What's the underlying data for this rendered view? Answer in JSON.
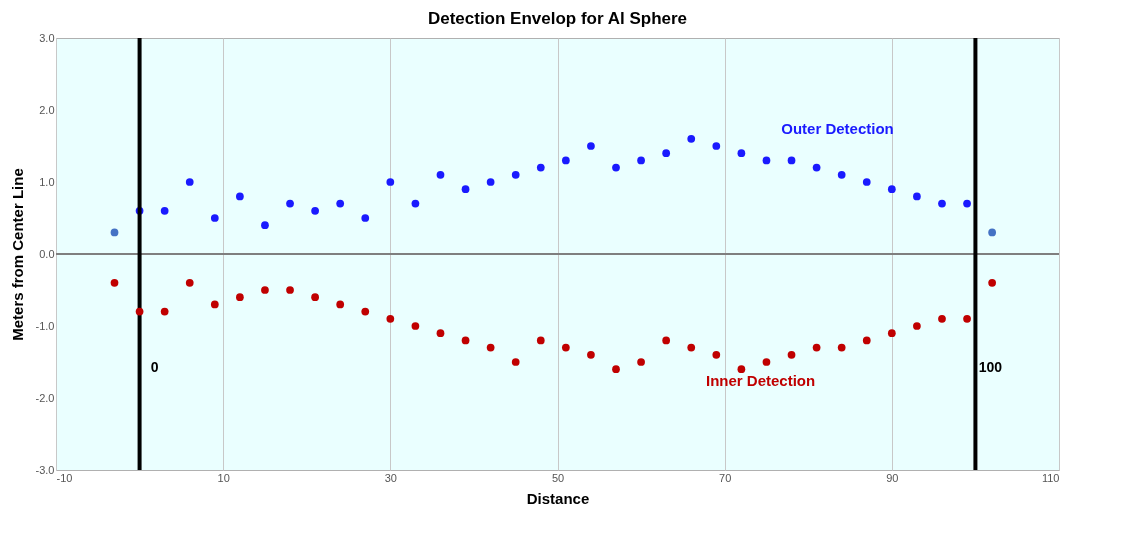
{
  "chart_data": {
    "type": "scatter",
    "title": "Detection Envelop for Al Sphere",
    "xlabel": "Distance",
    "ylabel": "Meters from Center Line",
    "x": [
      -3,
      0,
      3,
      6,
      9,
      12,
      15,
      18,
      21,
      24,
      27,
      30,
      33,
      36,
      39,
      42,
      45,
      48,
      51,
      54,
      57,
      60,
      63,
      66,
      69,
      72,
      75,
      78,
      81,
      84,
      87,
      90,
      93,
      96,
      99,
      102
    ],
    "series": [
      {
        "name": "Outer Detection",
        "color": "#1a1aff",
        "colors": [
          "#4472c4",
          "#1a1aff",
          "#1a1aff",
          "#1a1aff",
          "#1a1aff",
          "#1a1aff",
          "#1a1aff",
          "#1a1aff",
          "#1a1aff",
          "#1a1aff",
          "#1a1aff",
          "#1a1aff",
          "#1a1aff",
          "#1a1aff",
          "#1a1aff",
          "#1a1aff",
          "#1a1aff",
          "#1a1aff",
          "#1a1aff",
          "#1a1aff",
          "#1a1aff",
          "#1a1aff",
          "#1a1aff",
          "#1a1aff",
          "#1a1aff",
          "#1a1aff",
          "#1a1aff",
          "#1a1aff",
          "#1a1aff",
          "#1a1aff",
          "#1a1aff",
          "#1a1aff",
          "#1a1aff",
          "#1a1aff",
          "#1a1aff",
          "#4472c4"
        ],
        "values": [
          0.3,
          0.6,
          0.6,
          1.0,
          0.5,
          0.8,
          0.4,
          0.7,
          0.6,
          0.7,
          0.5,
          1.0,
          0.7,
          1.1,
          0.9,
          1.0,
          1.1,
          1.2,
          1.3,
          1.5,
          1.2,
          1.3,
          1.4,
          1.6,
          1.5,
          1.4,
          1.3,
          1.3,
          1.2,
          1.1,
          1.0,
          0.9,
          0.8,
          0.7,
          0.7,
          0.3
        ]
      },
      {
        "name": "Inner Detection",
        "color": "#c00000",
        "values": [
          -0.4,
          -0.8,
          -0.8,
          -0.4,
          -0.7,
          -0.6,
          -0.5,
          -0.5,
          -0.6,
          -0.7,
          -0.8,
          -0.9,
          -1.0,
          -1.1,
          -1.2,
          -1.3,
          -1.5,
          -1.2,
          -1.3,
          -1.4,
          -1.6,
          -1.5,
          -1.2,
          -1.3,
          -1.4,
          -1.6,
          -1.5,
          -1.4,
          -1.3,
          -1.3,
          -1.2,
          -1.1,
          -1.0,
          -0.9,
          -0.9,
          -0.4
        ]
      }
    ],
    "xlim": [
      -10,
      110
    ],
    "xticks": [
      -10,
      10,
      30,
      50,
      70,
      90,
      110
    ],
    "ylim": [
      -3,
      3
    ],
    "yticks": [
      {
        "value": -3,
        "label": "-3.0"
      },
      {
        "value": -2,
        "label": "-2.0"
      },
      {
        "value": -1,
        "label": "-1.0"
      },
      {
        "value": 0,
        "label": "0.0"
      },
      {
        "value": 1,
        "label": "1.0"
      },
      {
        "value": 2,
        "label": "2.0"
      },
      {
        "value": 3,
        "label": "3.0"
      }
    ],
    "ref_lines": [
      {
        "axis": "y",
        "value": 0,
        "label": null,
        "color": "#7f7f7f"
      },
      {
        "axis": "x",
        "value": 0,
        "label": "0",
        "color": "#000000"
      },
      {
        "axis": "x",
        "value": 100,
        "label": "100",
        "color": "#000000"
      }
    ],
    "grid": "x",
    "marker": "circle",
    "legend": false
  }
}
